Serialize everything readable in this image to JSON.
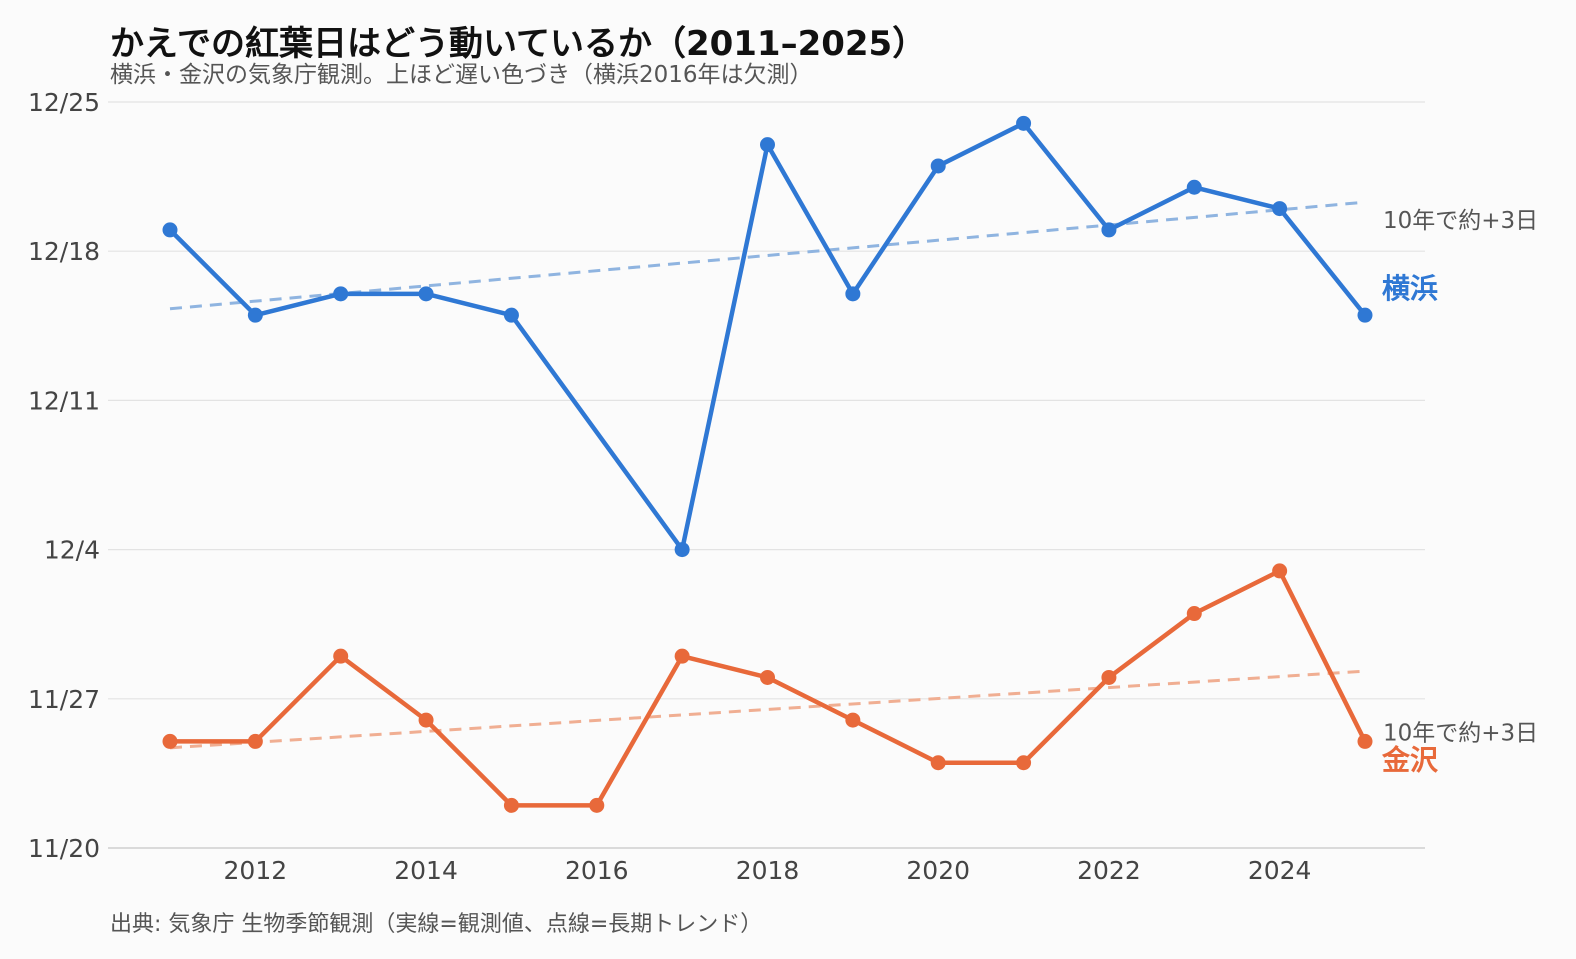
{
  "chart_data": {
    "type": "line",
    "title": "かえでの紅葉日はどう動いているか（2011–2025）",
    "subtitle": "横浜・金沢の気象庁観測。上ほど遅い色づき（横浜2016年は欠測）",
    "caption": "出典: 気象庁 生物季節観測（実線=観測値、点線=長期トレンド）",
    "x_ticks": [
      2012,
      2014,
      2016,
      2018,
      2020,
      2022,
      2024
    ],
    "y_ticks": [
      "11/20",
      "11/27",
      "12/4",
      "12/11",
      "12/18",
      "12/25"
    ],
    "xlim": [
      2011,
      2025
    ],
    "ylim": [
      "11/20",
      "12/25"
    ],
    "grid": "horizontal",
    "series": [
      {
        "name": "横浜",
        "color": "#2f78d4",
        "trend_color": "#8fb4e0",
        "x": [
          2011,
          2012,
          2013,
          2014,
          2015,
          2017,
          2018,
          2019,
          2020,
          2021,
          2022,
          2023,
          2024,
          2025
        ],
        "values": [
          "12/19",
          "12/15",
          "12/16",
          "12/16",
          "12/15",
          "12/4",
          "12/23",
          "12/16",
          "12/22",
          "12/24",
          "12/19",
          "12/21",
          "12/20",
          "12/15"
        ],
        "trend": {
          "start": [
            2011,
            "12/15.3"
          ],
          "end": [
            2025,
            "12/20.3"
          ]
        },
        "trend_label": "10年で約+3日"
      },
      {
        "name": "金沢",
        "color": "#e8693a",
        "trend_color": "#f0ae92",
        "x": [
          2011,
          2012,
          2013,
          2014,
          2015,
          2016,
          2017,
          2018,
          2019,
          2020,
          2021,
          2022,
          2023,
          2024,
          2025
        ],
        "values": [
          "11/25",
          "11/25",
          "11/29",
          "11/26",
          "11/22",
          "11/22",
          "11/29",
          "11/28",
          "11/26",
          "11/24",
          "11/24",
          "11/28",
          "12/1",
          "12/3",
          "11/25"
        ],
        "trend": {
          "start": [
            2011,
            "11/24.7"
          ],
          "end": [
            2025,
            "11/28.3"
          ]
        },
        "trend_label": "10年で約+3日"
      }
    ]
  }
}
